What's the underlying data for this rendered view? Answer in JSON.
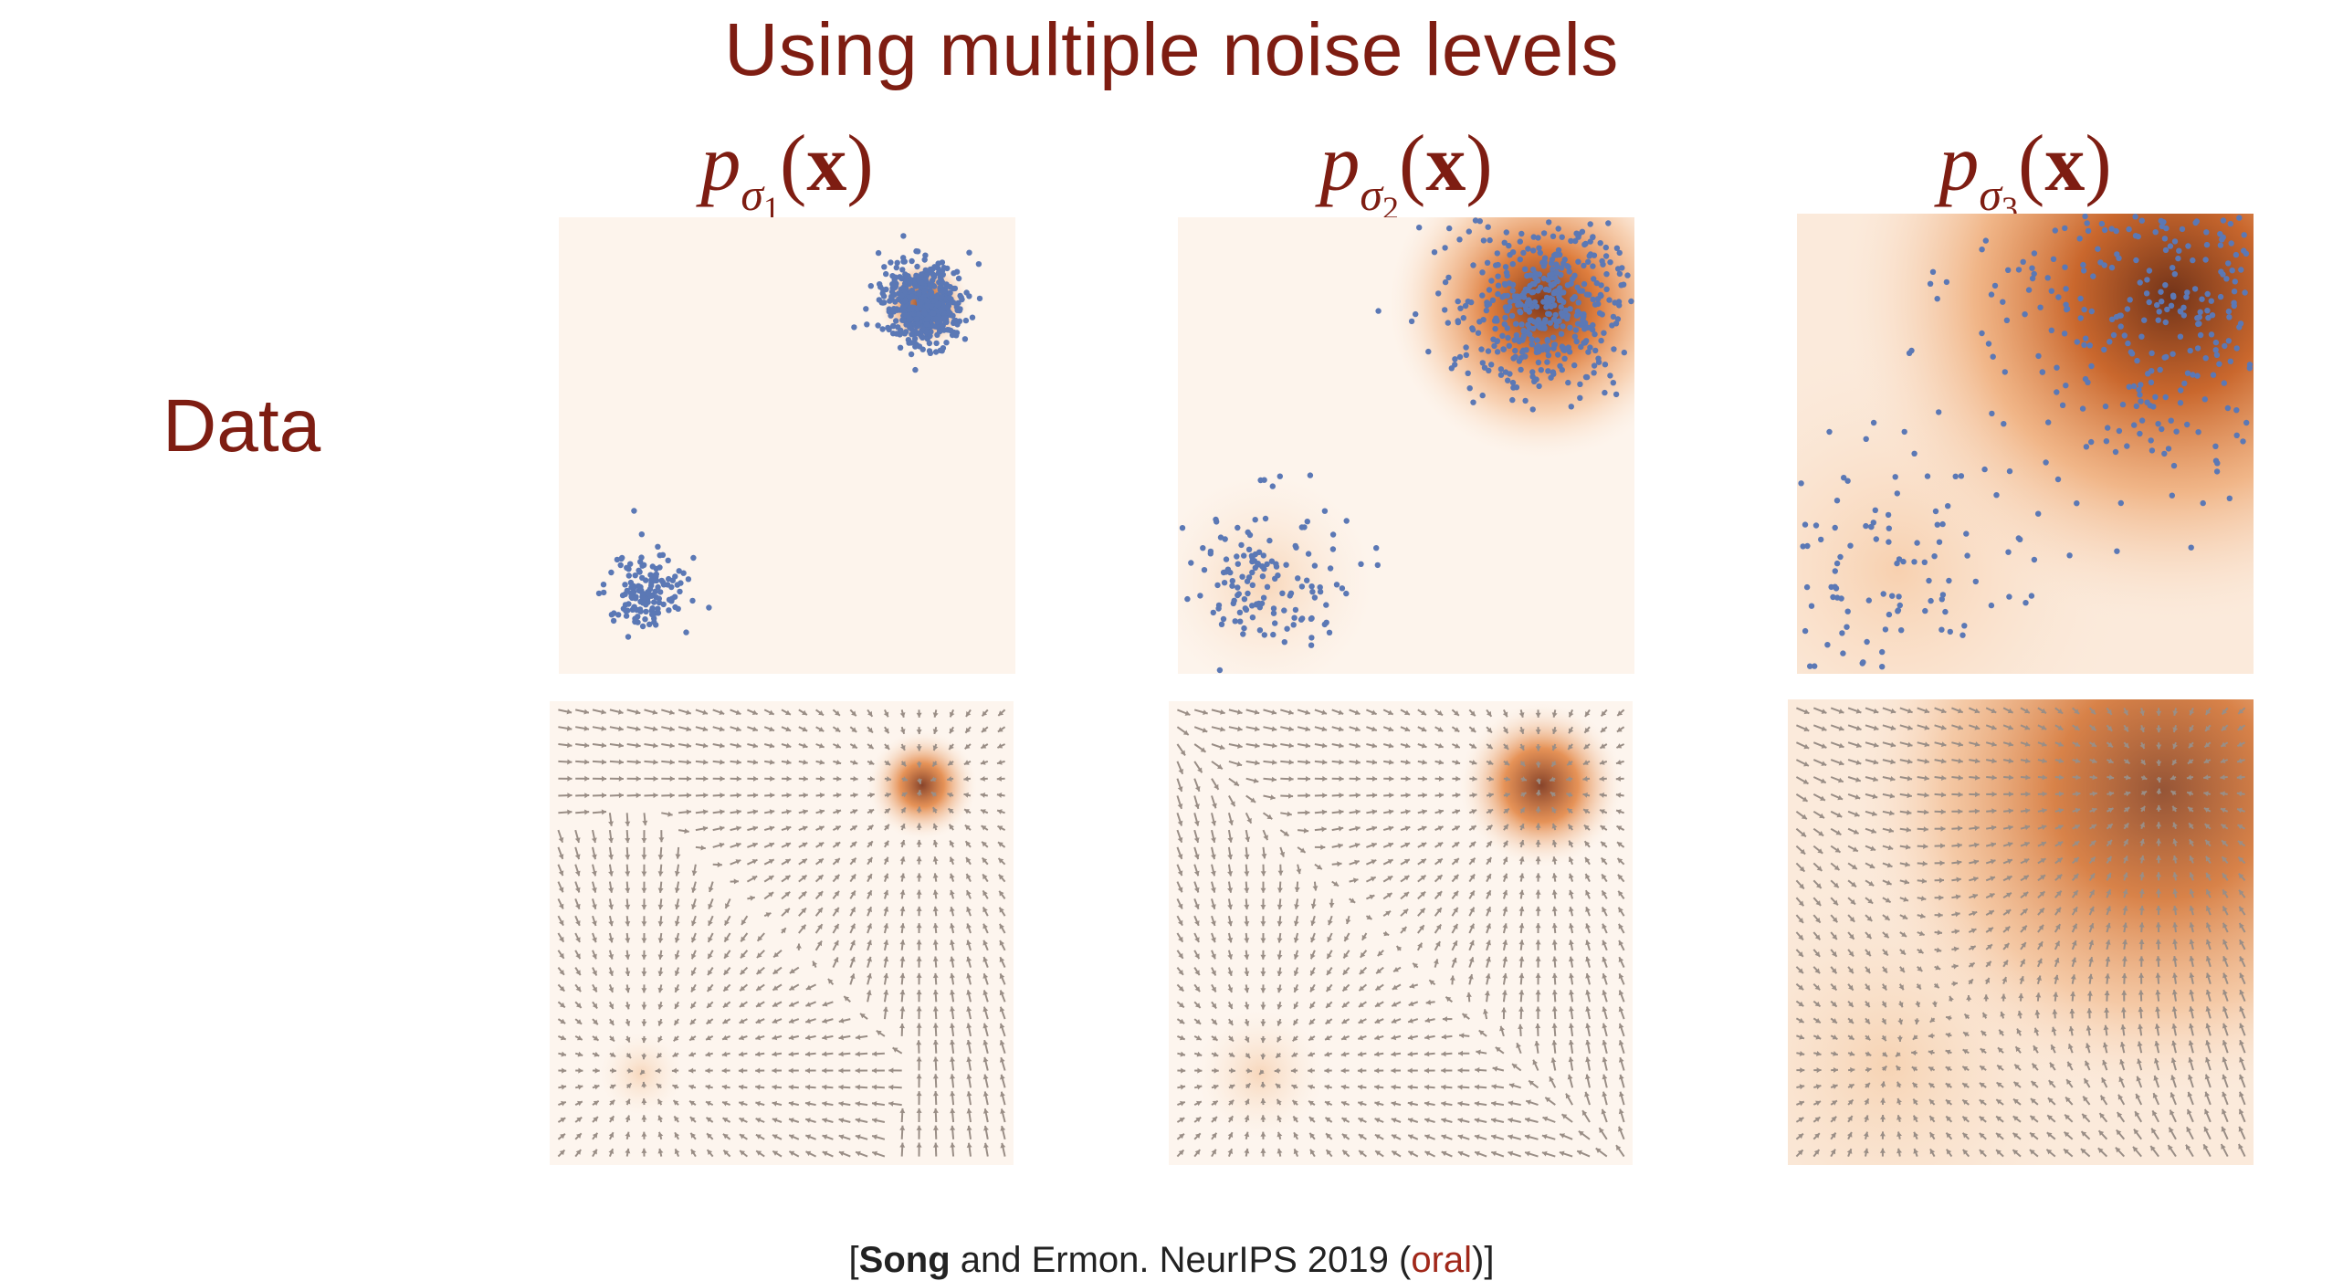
{
  "slide": {
    "title": "Using multiple noise levels",
    "row_label": "Data"
  },
  "columns": [
    {
      "title_p": "p",
      "title_sigma": "σ",
      "title_index": "1",
      "title_open": "(",
      "title_x": "x",
      "title_close": ")"
    },
    {
      "title_p": "p",
      "title_sigma": "σ",
      "title_index": "2",
      "title_open": "(",
      "title_x": "x",
      "title_close": ")"
    },
    {
      "title_p": "p",
      "title_sigma": "σ",
      "title_index": "3",
      "title_open": "(",
      "title_x": "x",
      "title_close": ")"
    }
  ],
  "citation": {
    "open": "[",
    "author": "Song",
    "rest": " and Ermon. NeurIPS 2019 (",
    "oral": "oral",
    "close": ")]"
  },
  "colors": {
    "title": "#7e1d12",
    "points": "#5b78b5",
    "arrows": "#9a8e86",
    "density_dark": "#7a2e0e",
    "density_mid": "#e07a32",
    "background": "#fdf4ec"
  }
}
